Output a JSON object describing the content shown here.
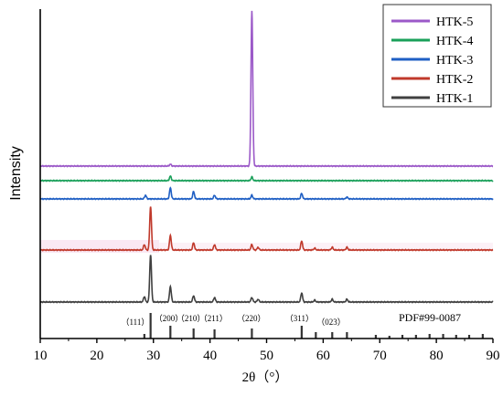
{
  "chart_data": {
    "type": "line",
    "xlabel": "2θ（°）",
    "ylabel": "Intensity",
    "xlim": [
      10,
      90
    ],
    "x_ticks": [
      10,
      20,
      30,
      40,
      50,
      60,
      70,
      80,
      90
    ],
    "legend_position": "top-right",
    "series": [
      {
        "name": "HTK-5",
        "color": "#9b59c8",
        "peaks": [
          {
            "x": 33.0,
            "h": 2
          },
          {
            "x": 47.4,
            "h": 170
          }
        ]
      },
      {
        "name": "HTK-4",
        "color": "#1aa05a",
        "peaks": [
          {
            "x": 33.0,
            "h": 5
          },
          {
            "x": 47.4,
            "h": 4
          }
        ]
      },
      {
        "name": "HTK-3",
        "color": "#1f5fc4",
        "peaks": [
          {
            "x": 28.6,
            "h": 4
          },
          {
            "x": 33.0,
            "h": 12
          },
          {
            "x": 37.1,
            "h": 8
          },
          {
            "x": 40.8,
            "h": 4
          },
          {
            "x": 47.4,
            "h": 4
          },
          {
            "x": 56.2,
            "h": 6
          },
          {
            "x": 64.2,
            "h": 2
          }
        ]
      },
      {
        "name": "HTK-2",
        "color": "#c0392b",
        "peaks": [
          {
            "x": 28.4,
            "h": 6
          },
          {
            "x": 29.5,
            "h": 48
          },
          {
            "x": 33.0,
            "h": 16
          },
          {
            "x": 37.1,
            "h": 8
          },
          {
            "x": 40.8,
            "h": 6
          },
          {
            "x": 47.4,
            "h": 6
          },
          {
            "x": 48.5,
            "h": 3
          },
          {
            "x": 56.2,
            "h": 10
          },
          {
            "x": 58.5,
            "h": 2
          },
          {
            "x": 61.6,
            "h": 3
          },
          {
            "x": 64.2,
            "h": 3
          }
        ]
      },
      {
        "name": "HTK-1",
        "color": "#404040",
        "peaks": [
          {
            "x": 28.4,
            "h": 6
          },
          {
            "x": 29.5,
            "h": 52
          },
          {
            "x": 33.0,
            "h": 17
          },
          {
            "x": 37.1,
            "h": 7
          },
          {
            "x": 40.8,
            "h": 5
          },
          {
            "x": 47.4,
            "h": 5
          },
          {
            "x": 48.5,
            "h": 3
          },
          {
            "x": 56.2,
            "h": 10
          },
          {
            "x": 58.5,
            "h": 2
          },
          {
            "x": 61.6,
            "h": 3
          },
          {
            "x": 64.2,
            "h": 3
          }
        ]
      }
    ],
    "reference": {
      "label": "PDF#99-0087",
      "sticks": [
        {
          "x": 28.4,
          "h": 5
        },
        {
          "x": 29.5,
          "h": 28
        },
        {
          "x": 33.0,
          "h": 14
        },
        {
          "x": 37.1,
          "h": 11
        },
        {
          "x": 40.8,
          "h": 10
        },
        {
          "x": 47.4,
          "h": 11
        },
        {
          "x": 56.2,
          "h": 14
        },
        {
          "x": 58.7,
          "h": 7
        },
        {
          "x": 61.6,
          "h": 7
        },
        {
          "x": 64.2,
          "h": 7
        },
        {
          "x": 69.3,
          "h": 4
        },
        {
          "x": 71.7,
          "h": 3
        },
        {
          "x": 74.0,
          "h": 4
        },
        {
          "x": 76.4,
          "h": 4
        },
        {
          "x": 78.8,
          "h": 5
        },
        {
          "x": 81.2,
          "h": 5
        },
        {
          "x": 83.5,
          "h": 4
        },
        {
          "x": 85.8,
          "h": 4
        },
        {
          "x": 88.2,
          "h": 5
        }
      ],
      "hkl_labels": [
        {
          "text": "（111）",
          "x": 26.8
        },
        {
          "text": "（200）",
          "x": 32.7
        },
        {
          "text": "（210）",
          "x": 36.6
        },
        {
          "text": "（211）",
          "x": 40.6
        },
        {
          "text": "（220）",
          "x": 47.3
        },
        {
          "text": "（311）",
          "x": 55.8
        },
        {
          "text": "（023）",
          "x": 61.4
        }
      ]
    }
  }
}
